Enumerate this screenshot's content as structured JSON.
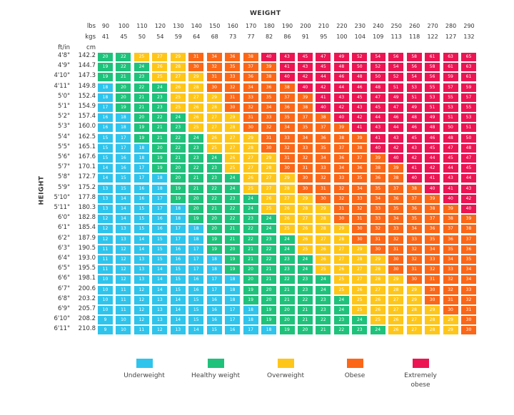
{
  "chart_data": {
    "type": "heatmap",
    "title": "",
    "xlabel": "WEIGHT",
    "ylabel": "HEIGHT",
    "x_unit_labels": [
      "lbs",
      "kgs"
    ],
    "y_unit_labels": [
      "ft/in",
      "cm"
    ],
    "lbs": [
      "90",
      "100",
      "110",
      "120",
      "130",
      "140",
      "150",
      "160",
      "170",
      "180",
      "190",
      "200",
      "210",
      "220",
      "230",
      "240",
      "250",
      "260",
      "270",
      "280",
      "290"
    ],
    "kgs": [
      "41",
      "45",
      "50",
      "54",
      "59",
      "64",
      "68",
      "73",
      "77",
      "82",
      "86",
      "91",
      "95",
      "100",
      "104",
      "109",
      "113",
      "118",
      "122",
      "127",
      "132"
    ],
    "heights_ftin": [
      "4'8\"",
      "4'9\"",
      "4'10\"",
      "4'11\"",
      "5'0\"",
      "5'1\"",
      "5'2\"",
      "5'3\"",
      "5'4\"",
      "5'5\"",
      "5'6\"",
      "5'7\"",
      "5'8\"",
      "5'9\"",
      "5'10\"",
      "5'11\"",
      "6'0\"",
      "6'1\"",
      "6'2\"",
      "6'3\"",
      "6'4\"",
      "6'5\"",
      "6'6\"",
      "6'7\"",
      "6'8\"",
      "6'9\"",
      "6'10\"",
      "6'11\""
    ],
    "heights_cm": [
      "142.2",
      "144.7",
      "147.3",
      "149.8",
      "152.4",
      "154.9",
      "157.4",
      "160.0",
      "162.5",
      "165.1",
      "167.6",
      "170.1",
      "172.7",
      "175.2",
      "177.8",
      "180.3",
      "182.8",
      "185.4",
      "187.9",
      "190.5",
      "193.0",
      "195.5",
      "198.1",
      "200.6",
      "203.2",
      "205.7",
      "208.2",
      "210.8"
    ],
    "values": [
      [
        20,
        22,
        25,
        27,
        29,
        31,
        34,
        36,
        38,
        40,
        43,
        45,
        47,
        49,
        52,
        54,
        56,
        58,
        61,
        63,
        65
      ],
      [
        19,
        22,
        24,
        26,
        28,
        30,
        32,
        35,
        37,
        39,
        41,
        43,
        45,
        48,
        50,
        52,
        54,
        56,
        58,
        61,
        63
      ],
      [
        19,
        21,
        23,
        25,
        27,
        29,
        31,
        33,
        36,
        38,
        40,
        42,
        44,
        46,
        48,
        50,
        52,
        54,
        56,
        59,
        61
      ],
      [
        18,
        20,
        22,
        24,
        26,
        28,
        30,
        32,
        34,
        36,
        38,
        40,
        42,
        44,
        46,
        48,
        51,
        53,
        55,
        57,
        59
      ],
      [
        18,
        20,
        21,
        23,
        25,
        27,
        29,
        31,
        33,
        35,
        37,
        39,
        41,
        43,
        45,
        47,
        49,
        51,
        53,
        55,
        57
      ],
      [
        17,
        19,
        21,
        23,
        25,
        26,
        28,
        30,
        32,
        34,
        36,
        38,
        40,
        42,
        43,
        45,
        47,
        49,
        51,
        53,
        55
      ],
      [
        16,
        18,
        20,
        22,
        24,
        26,
        27,
        29,
        31,
        33,
        35,
        37,
        38,
        40,
        42,
        44,
        46,
        48,
        49,
        51,
        53
      ],
      [
        16,
        18,
        19,
        21,
        23,
        25,
        27,
        28,
        30,
        32,
        34,
        35,
        37,
        39,
        41,
        43,
        44,
        46,
        48,
        50,
        51
      ],
      [
        15,
        17,
        19,
        21,
        22,
        24,
        26,
        27,
        29,
        31,
        33,
        34,
        36,
        38,
        39,
        41,
        43,
        45,
        46,
        48,
        50
      ],
      [
        15,
        17,
        18,
        20,
        22,
        23,
        25,
        27,
        28,
        30,
        32,
        33,
        35,
        37,
        38,
        40,
        42,
        43,
        45,
        47,
        48
      ],
      [
        15,
        16,
        18,
        19,
        21,
        23,
        24,
        26,
        27,
        29,
        31,
        32,
        34,
        36,
        37,
        39,
        40,
        42,
        44,
        45,
        47
      ],
      [
        14,
        16,
        17,
        19,
        20,
        22,
        23,
        25,
        27,
        28,
        30,
        31,
        33,
        34,
        36,
        38,
        39,
        41,
        42,
        44,
        45
      ],
      [
        14,
        15,
        17,
        18,
        20,
        21,
        23,
        24,
        26,
        27,
        29,
        30,
        32,
        33,
        35,
        36,
        38,
        40,
        41,
        43,
        44
      ],
      [
        13,
        15,
        16,
        18,
        19,
        21,
        22,
        24,
        25,
        27,
        28,
        30,
        31,
        32,
        34,
        35,
        37,
        38,
        40,
        41,
        43
      ],
      [
        13,
        14,
        16,
        17,
        19,
        20,
        22,
        23,
        24,
        26,
        27,
        29,
        30,
        32,
        33,
        34,
        36,
        37,
        39,
        40,
        42
      ],
      [
        13,
        14,
        15,
        17,
        18,
        20,
        21,
        22,
        24,
        25,
        26,
        28,
        29,
        31,
        32,
        33,
        35,
        36,
        38,
        39,
        40
      ],
      [
        12,
        14,
        15,
        16,
        18,
        19,
        20,
        22,
        23,
        24,
        26,
        27,
        28,
        30,
        31,
        33,
        34,
        35,
        37,
        38,
        39
      ],
      [
        12,
        13,
        15,
        16,
        17,
        18,
        20,
        21,
        22,
        24,
        25,
        26,
        28,
        29,
        30,
        32,
        33,
        34,
        36,
        37,
        38
      ],
      [
        12,
        13,
        14,
        15,
        17,
        18,
        19,
        21,
        22,
        23,
        24,
        26,
        27,
        28,
        30,
        31,
        32,
        33,
        35,
        36,
        37
      ],
      [
        11,
        12,
        14,
        15,
        16,
        17,
        19,
        20,
        21,
        22,
        24,
        25,
        26,
        27,
        29,
        30,
        31,
        32,
        34,
        35,
        36
      ],
      [
        11,
        12,
        13,
        15,
        16,
        17,
        18,
        19,
        21,
        22,
        23,
        24,
        26,
        27,
        28,
        29,
        30,
        32,
        33,
        34,
        35
      ],
      [
        11,
        12,
        13,
        14,
        15,
        17,
        18,
        19,
        20,
        21,
        23,
        24,
        25,
        26,
        27,
        28,
        30,
        31,
        32,
        33,
        34
      ],
      [
        10,
        12,
        13,
        14,
        15,
        16,
        17,
        18,
        20,
        21,
        22,
        23,
        24,
        25,
        27,
        28,
        29,
        30,
        31,
        32,
        34
      ],
      [
        10,
        11,
        12,
        14,
        15,
        16,
        17,
        18,
        19,
        20,
        21,
        23,
        24,
        25,
        26,
        27,
        28,
        29,
        30,
        32,
        33
      ],
      [
        10,
        11,
        12,
        13,
        14,
        15,
        16,
        18,
        19,
        20,
        21,
        22,
        23,
        24,
        25,
        26,
        27,
        29,
        30,
        31,
        32
      ],
      [
        10,
        11,
        12,
        13,
        14,
        15,
        16,
        17,
        18,
        19,
        20,
        21,
        23,
        24,
        25,
        26,
        27,
        28,
        29,
        30,
        31
      ],
      [
        9,
        10,
        12,
        13,
        14,
        15,
        16,
        17,
        18,
        19,
        20,
        21,
        22,
        23,
        24,
        25,
        26,
        27,
        28,
        29,
        30
      ],
      [
        9,
        10,
        11,
        12,
        13,
        14,
        15,
        16,
        17,
        18,
        19,
        20,
        21,
        22,
        23,
        24,
        26,
        27,
        28,
        29,
        30
      ]
    ],
    "categories": [
      {
        "label": "Underweight",
        "max": 18,
        "color": "#2ec4ec"
      },
      {
        "label": "Healthy weight",
        "max": 24,
        "color": "#1ec27b"
      },
      {
        "label": "Overweight",
        "max": 29,
        "color": "#ffc61a"
      },
      {
        "label": "Obese",
        "max": 39,
        "color": "#fb6717"
      },
      {
        "label": "Extremely obese",
        "max": 999,
        "color": "#ec1452"
      }
    ],
    "legend_placement": "bottom"
  }
}
